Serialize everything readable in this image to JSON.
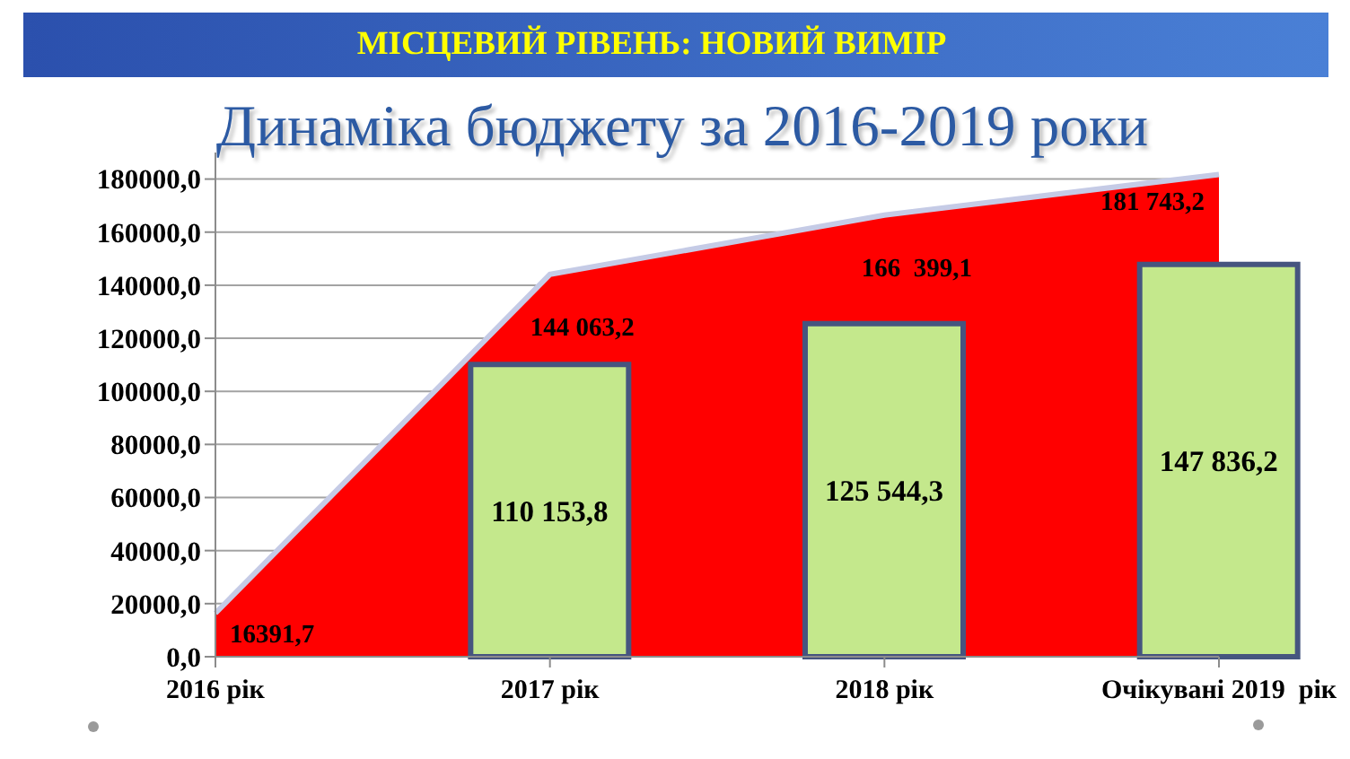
{
  "chart_data": {
    "type": "area",
    "title": "Динаміка бюджету за 2016-2019 роки",
    "annotations": [
      "МІСЦЕВИЙ РІВЕНЬ: НОВИЙ ВИМІР"
    ],
    "categories": [
      "2016 рік",
      "2017 рік",
      "2018 рік",
      "Очікувані 2019  рік"
    ],
    "series": [
      {
        "color": "#ff0000",
        "values": [
          16391.7,
          144063.2,
          166399.1,
          181743.2
        ],
        "value_labels": [
          "16391,7",
          "144 063,2",
          "166  399,1",
          "181 743,2"
        ]
      },
      {
        "type": "bar",
        "color": "#c4e88c",
        "values": [
          null,
          110153.8,
          125544.3,
          147836.2
        ],
        "value_labels": [
          null,
          "110 153,8",
          "125 544,3",
          "147 836,2"
        ]
      }
    ],
    "ylim": [
      0,
      190000
    ],
    "yticks": [
      {
        "value": 0,
        "label": "0,0"
      },
      {
        "value": 20000,
        "label": "20000,0"
      },
      {
        "value": 40000,
        "label": "40000,0"
      },
      {
        "value": 60000,
        "label": "60000,0"
      },
      {
        "value": 80000,
        "label": "80000,0"
      },
      {
        "value": 100000,
        "label": "100000,0"
      },
      {
        "value": 120000,
        "label": "120000,0"
      },
      {
        "value": 140000,
        "label": "140000,0"
      },
      {
        "value": 160000,
        "label": "160000,0"
      },
      {
        "value": 180000,
        "label": "180000,0"
      }
    ],
    "grid": "y"
  }
}
